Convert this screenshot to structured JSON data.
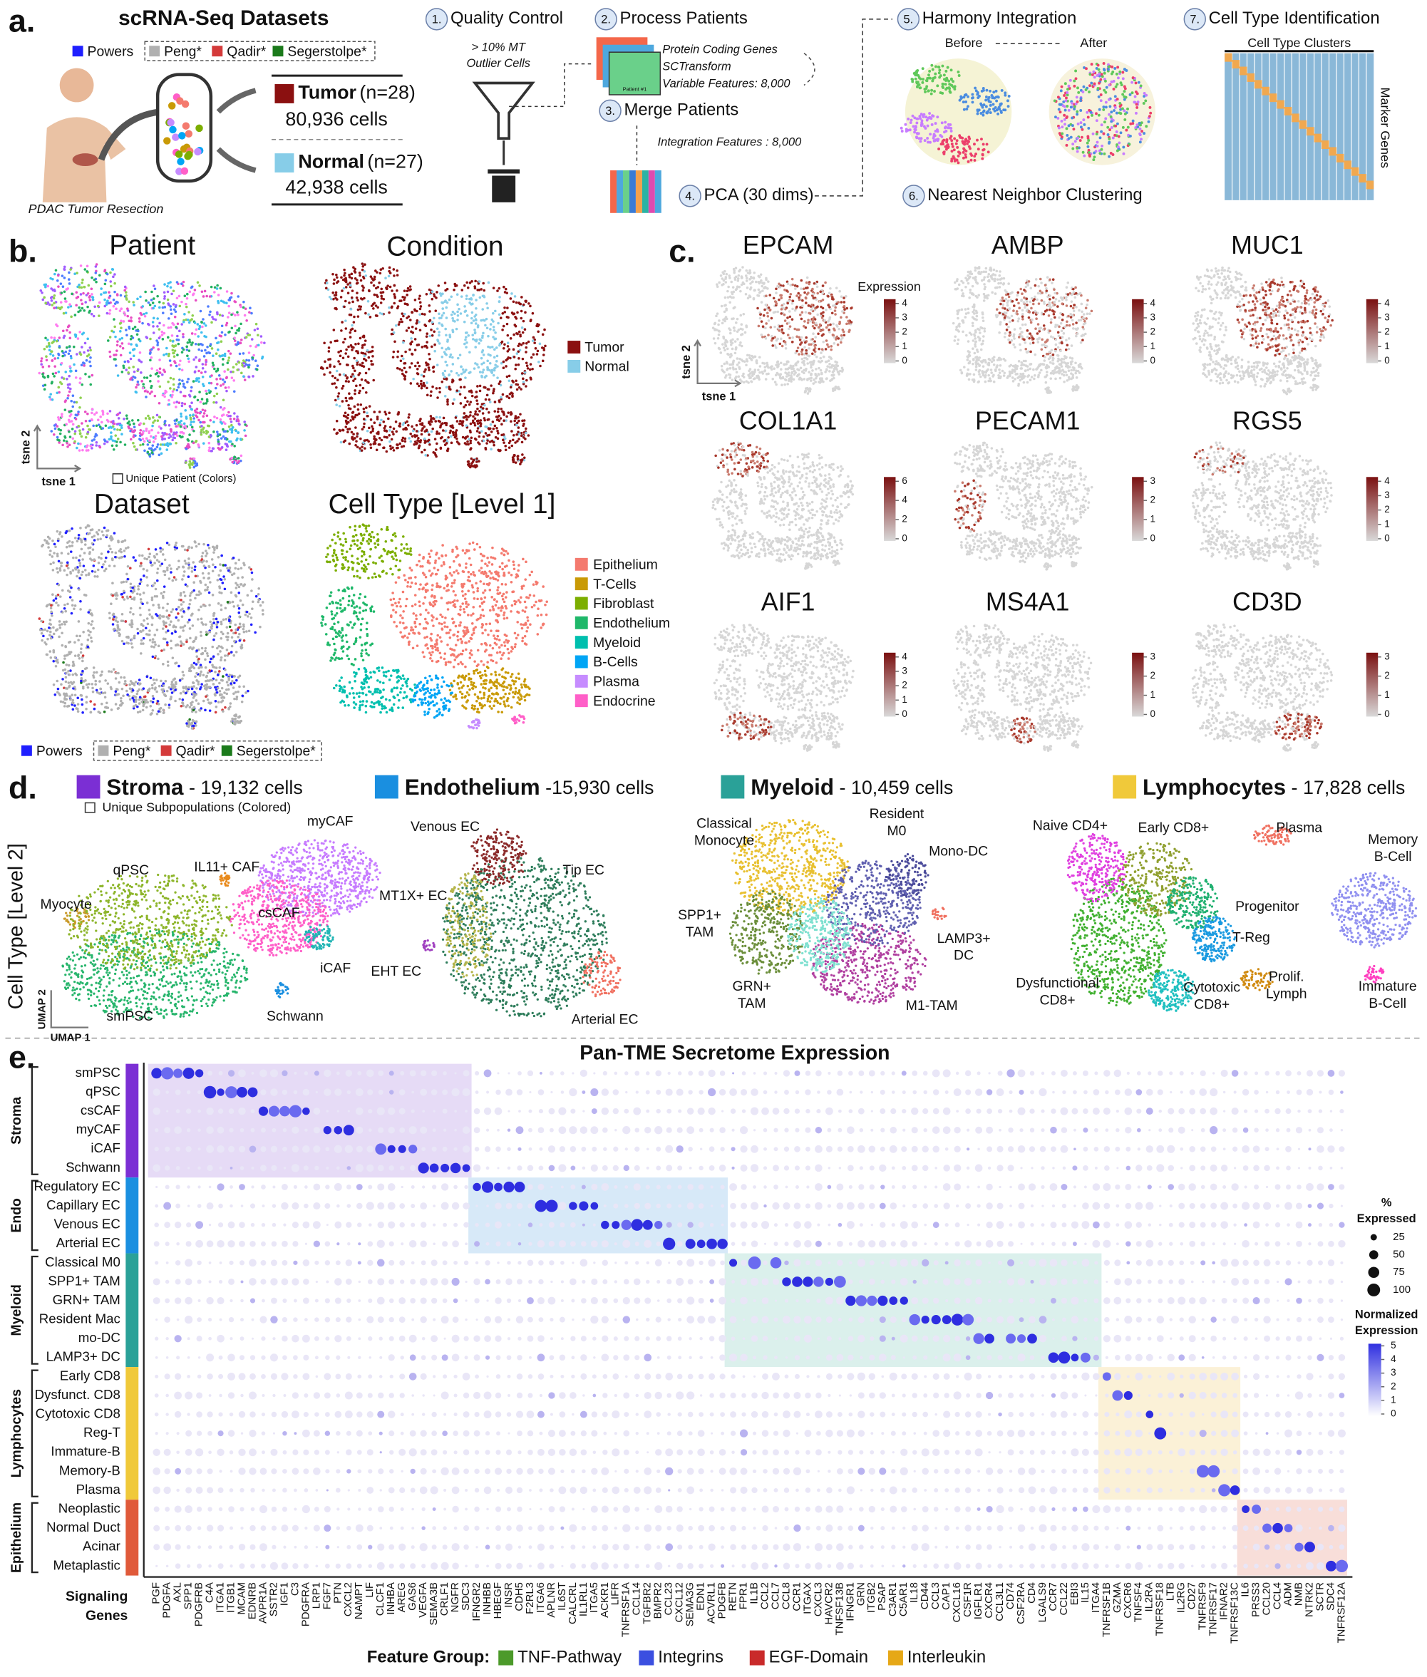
{
  "panel_a": {
    "label": "a.",
    "title": "scRNA-Seq Datasets",
    "datasets": [
      {
        "name": "Powers",
        "color": "#1f1fff"
      },
      {
        "name": "Peng*",
        "color": "#b0b0b0"
      },
      {
        "name": "Qadir*",
        "color": "#d43a3a"
      },
      {
        "name": "Segerstolpe*",
        "color": "#1b7a1b"
      }
    ],
    "resection": "PDAC  Tumor Resection",
    "tumor": {
      "name": "Tumor",
      "n": "(n=28)",
      "cells": "80,936 cells",
      "color": "#8b1010"
    },
    "normal": {
      "name": "Normal",
      "n": "(n=27)",
      "cells": "42,938 cells",
      "color": "#87cde8"
    },
    "steps": [
      {
        "num": "1.",
        "label": "Quality Control"
      },
      {
        "num": "2.",
        "label": "Process Patients"
      },
      {
        "num": "3.",
        "label": "Merge Patients"
      },
      {
        "num": "4.",
        "label": "PCA (30 dims)"
      },
      {
        "num": "5.",
        "label": "Harmony Integration"
      },
      {
        "num": "6.",
        "label": "Nearest Neighbor Clustering"
      },
      {
        "num": "7.",
        "label": "Cell Type Identification"
      }
    ],
    "qc_notes": [
      "> 10% MT",
      "Outlier Cells"
    ],
    "process_notes": [
      "Protein Coding Genes",
      "SCTransform",
      "Variable Features: 8,000"
    ],
    "patient_tag": "Patient #1",
    "merge_note": "Integration Features : 8,000",
    "harmony": [
      "Before",
      "After"
    ],
    "heatmap_top": "Cell Type Clusters",
    "heatmap_side": "Marker Genes"
  },
  "panel_b": {
    "label": "b.",
    "titles": [
      "Patient",
      "Condition",
      "Dataset",
      "Cell Type [Level 1]"
    ],
    "axis": [
      "tsne 2",
      "tsne 1"
    ],
    "patient_note": "Unique Patient (Colors)",
    "conditions": [
      {
        "name": "Tumor",
        "color": "#8b1010"
      },
      {
        "name": "Normal",
        "color": "#87cde8"
      }
    ],
    "cell_types": [
      {
        "name": "Epithelium",
        "color": "#f47a6e"
      },
      {
        "name": "T-Cells",
        "color": "#c99a06"
      },
      {
        "name": "Fibroblast",
        "color": "#7cae00"
      },
      {
        "name": "Endothelium",
        "color": "#1fb86a"
      },
      {
        "name": "Myeloid",
        "color": "#00bfae"
      },
      {
        "name": "B-Cells",
        "color": "#00a5f5"
      },
      {
        "name": "Plasma",
        "color": "#c68cff"
      },
      {
        "name": "Endocrine",
        "color": "#ff5fc8"
      }
    ],
    "datasets": [
      {
        "name": "Powers",
        "color": "#1f1fff"
      },
      {
        "name": "Peng*",
        "color": "#b0b0b0"
      },
      {
        "name": "Qadir*",
        "color": "#d43a3a"
      },
      {
        "name": "Segerstolpe*",
        "color": "#1b7a1b"
      }
    ]
  },
  "panel_c": {
    "label": "c.",
    "legend_title": "Expression",
    "axis": [
      "tsne 2",
      "tsne 1"
    ],
    "genes": [
      {
        "name": "EPCAM",
        "ticks": [
          0,
          1,
          2,
          3,
          4
        ]
      },
      {
        "name": "AMBP",
        "ticks": [
          0,
          1,
          2,
          3,
          4
        ]
      },
      {
        "name": "MUC1",
        "ticks": [
          0,
          1,
          2,
          3,
          4
        ]
      },
      {
        "name": "COL1A1",
        "ticks": [
          0,
          2,
          4,
          6
        ]
      },
      {
        "name": "PECAM1",
        "ticks": [
          0,
          1,
          2,
          3
        ]
      },
      {
        "name": "RGS5",
        "ticks": [
          0,
          1,
          2,
          3,
          4
        ]
      },
      {
        "name": "AIF1",
        "ticks": [
          0,
          1,
          2,
          3,
          4
        ]
      },
      {
        "name": "MS4A1",
        "ticks": [
          0,
          1,
          2,
          3
        ]
      },
      {
        "name": "CD3D",
        "ticks": [
          0,
          1,
          2,
          3
        ]
      }
    ]
  },
  "panel_d": {
    "label": "d.",
    "axis_title": "Cell Type [Level 2]",
    "note": "Unique Subpopulations (Colored)",
    "axis": [
      "UMAP 2",
      "UMAP 1"
    ],
    "groups": [
      {
        "name": "Stroma",
        "cells": "- 19,132 cells",
        "color": "#7b2fd4",
        "clusters": [
          [
            "Myocyte"
          ],
          [
            "smPSC"
          ],
          [
            "qPSC"
          ],
          [
            "myCAF"
          ],
          [
            "csCAF"
          ],
          [
            "iCAF"
          ],
          [
            "IL11+ CAF"
          ],
          [
            "Schwann"
          ]
        ]
      },
      {
        "name": "Endothelium",
        "cells": "-15,930 cells",
        "color": "#1a8fe0",
        "clusters": [
          [
            "Tip EC"
          ],
          [
            "Venous EC"
          ],
          [
            "MT1X+ EC"
          ],
          [
            "EHT EC"
          ],
          [
            "Arterial EC"
          ]
        ]
      },
      {
        "name": "Myeloid",
        "cells": "- 10,459 cells",
        "color": "#2aa198",
        "clusters": [
          [
            "Classical",
            "Monocyte"
          ],
          [
            "SPP1+",
            "TAM"
          ],
          [
            "M1-TAM"
          ],
          [
            "Resident",
            "M0"
          ],
          [
            "Mono-DC"
          ],
          [
            "GRN+",
            "TAM"
          ],
          [
            "LAMP3+",
            "DC"
          ]
        ]
      },
      {
        "name": "Lymphocytes",
        "cells": "- 17,828 cells",
        "color": "#f0c93a",
        "clusters": [
          [
            "Dysfunctional",
            "CD8+"
          ],
          [
            "Naive CD4+"
          ],
          [
            "Early CD8+"
          ],
          [
            "Progenitor"
          ],
          [
            "T-Reg"
          ],
          [
            "Cytotoxic",
            "CD8+"
          ],
          [
            "Prolif.",
            "Lymph"
          ],
          [
            "Plasma"
          ],
          [
            "Memory",
            "B-Cell"
          ],
          [
            "Immature",
            "B-Cell"
          ]
        ]
      }
    ]
  },
  "panel_e": {
    "label": "e.",
    "title": "Pan-TME Secretome Expression",
    "x_title": [
      "Signaling",
      "Genes"
    ],
    "row_groups": [
      {
        "name": "Stroma",
        "color": "#7b2fd4",
        "rows": [
          "smPSC",
          "qPSC",
          "csCAF",
          "myCAF",
          "iCAF",
          "Schwann"
        ]
      },
      {
        "name": "Endo",
        "color": "#1a8fe0",
        "rows": [
          "Regulatory EC",
          "Capillary EC",
          "Venous EC",
          "Arterial EC"
        ]
      },
      {
        "name": "Myeloid",
        "color": "#2aa198",
        "rows": [
          "Classical M0",
          "SPP1+ TAM",
          "GRN+ TAM",
          "Resident Mac",
          "mo-DC",
          "LAMP3+ DC"
        ]
      },
      {
        "name": "Lymphocytes",
        "color": "#f0c93a",
        "rows": [
          "Early CD8",
          "Dysfunct. CD8",
          "Cytotoxic CD8",
          "Reg-T",
          "Immature-B",
          "Memory-B",
          "Plasma"
        ]
      },
      {
        "name": "Epithelium",
        "color": "#e05a3a",
        "rows": [
          "Neoplastic",
          "Normal Duct",
          "Acinar",
          "Metaplastic"
        ]
      }
    ],
    "genes": [
      {
        "name": "PGF",
        "color": "#222"
      },
      {
        "name": "PDGFA",
        "color": "#222"
      },
      {
        "name": "AXL",
        "color": "#222"
      },
      {
        "name": "SPP1",
        "color": "#222"
      },
      {
        "name": "PDGFRB",
        "color": "#222"
      },
      {
        "name": "C4A",
        "color": "#222"
      },
      {
        "name": "ITGA1",
        "color": "#3b4fe0"
      },
      {
        "name": "ITGB1",
        "color": "#3b4fe0"
      },
      {
        "name": "MCAM",
        "color": "#222"
      },
      {
        "name": "EDNRB",
        "color": "#222"
      },
      {
        "name": "AVPR1A",
        "color": "#222"
      },
      {
        "name": "SSTR2",
        "color": "#222"
      },
      {
        "name": "IGF1",
        "color": "#222"
      },
      {
        "name": "C3",
        "color": "#222"
      },
      {
        "name": "PDGFRA",
        "color": "#222"
      },
      {
        "name": "LRP1",
        "color": "#c92a2a"
      },
      {
        "name": "FGF7",
        "color": "#222"
      },
      {
        "name": "PTN",
        "color": "#222"
      },
      {
        "name": "CXCL2",
        "color": "#222"
      },
      {
        "name": "NAMPT",
        "color": "#222"
      },
      {
        "name": "LIF",
        "color": "#222"
      },
      {
        "name": "CLCF1",
        "color": "#222"
      },
      {
        "name": "INHBA",
        "color": "#222"
      },
      {
        "name": "AREG",
        "color": "#c92a2a"
      },
      {
        "name": "GAS6",
        "color": "#c92a2a"
      },
      {
        "name": "VEGFA",
        "color": "#222"
      },
      {
        "name": "SEMA3B",
        "color": "#222"
      },
      {
        "name": "CRLF1",
        "color": "#222"
      },
      {
        "name": "NGFR",
        "color": "#4c9a2a"
      },
      {
        "name": "SDC3",
        "color": "#222"
      },
      {
        "name": "IFNGR2",
        "color": "#222"
      },
      {
        "name": "INHBB",
        "color": "#222"
      },
      {
        "name": "HBEGF",
        "color": "#c92a2a"
      },
      {
        "name": "INSR",
        "color": "#222"
      },
      {
        "name": "CDH5",
        "color": "#222"
      },
      {
        "name": "F2RL3",
        "color": "#222"
      },
      {
        "name": "ITGA6",
        "color": "#3b4fe0"
      },
      {
        "name": "APLNR",
        "color": "#222"
      },
      {
        "name": "IL6ST",
        "color": "#e6a817"
      },
      {
        "name": "CALCRL",
        "color": "#222"
      },
      {
        "name": "IL1RL1",
        "color": "#e6a817"
      },
      {
        "name": "ITGA5",
        "color": "#3b4fe0"
      },
      {
        "name": "ACKR1",
        "color": "#222"
      },
      {
        "name": "LIFR",
        "color": "#e6a817"
      },
      {
        "name": "TNFRSF1A",
        "color": "#4c9a2a"
      },
      {
        "name": "CCL14",
        "color": "#222"
      },
      {
        "name": "TGFBR2",
        "color": "#222"
      },
      {
        "name": "BMPR2",
        "color": "#222"
      },
      {
        "name": "CCL23",
        "color": "#222"
      },
      {
        "name": "CXCL12",
        "color": "#222"
      },
      {
        "name": "SEMA3G",
        "color": "#222"
      },
      {
        "name": "EDN1",
        "color": "#222"
      },
      {
        "name": "ACVRL1",
        "color": "#222"
      },
      {
        "name": "PDGFB",
        "color": "#222"
      },
      {
        "name": "RETN",
        "color": "#222"
      },
      {
        "name": "FPR1",
        "color": "#222"
      },
      {
        "name": "IL1B",
        "color": "#e6a817"
      },
      {
        "name": "CCL2",
        "color": "#222"
      },
      {
        "name": "CCL7",
        "color": "#222"
      },
      {
        "name": "CCL8",
        "color": "#222"
      },
      {
        "name": "CCR1",
        "color": "#222"
      },
      {
        "name": "ITGAX",
        "color": "#3b4fe0"
      },
      {
        "name": "CXCL3",
        "color": "#222"
      },
      {
        "name": "HAVCR2",
        "color": "#222"
      },
      {
        "name": "TNFSF13B",
        "color": "#4c9a2a"
      },
      {
        "name": "IFNGR1",
        "color": "#222"
      },
      {
        "name": "GRN",
        "color": "#222"
      },
      {
        "name": "ITGB2",
        "color": "#3b4fe0"
      },
      {
        "name": "PSAP",
        "color": "#222"
      },
      {
        "name": "C3AR1",
        "color": "#222"
      },
      {
        "name": "C5AR1",
        "color": "#222"
      },
      {
        "name": "IL18",
        "color": "#e6a817"
      },
      {
        "name": "CD44",
        "color": "#222"
      },
      {
        "name": "CCL3",
        "color": "#222"
      },
      {
        "name": "CAP1",
        "color": "#222"
      },
      {
        "name": "CXCL16",
        "color": "#222"
      },
      {
        "name": "CSF1R",
        "color": "#222"
      },
      {
        "name": "IGFLR1",
        "color": "#222"
      },
      {
        "name": "CXCR4",
        "color": "#222"
      },
      {
        "name": "CCL3L1",
        "color": "#222"
      },
      {
        "name": "CD74",
        "color": "#222"
      },
      {
        "name": "CSF2RA",
        "color": "#222"
      },
      {
        "name": "CD4",
        "color": "#222"
      },
      {
        "name": "LGALS9",
        "color": "#222"
      },
      {
        "name": "CCR7",
        "color": "#222"
      },
      {
        "name": "CCL22",
        "color": "#222"
      },
      {
        "name": "EBI3",
        "color": "#222"
      },
      {
        "name": "IL15",
        "color": "#e6a817"
      },
      {
        "name": "ITGA4",
        "color": "#3b4fe0"
      },
      {
        "name": "TNFRSF1B",
        "color": "#4c9a2a"
      },
      {
        "name": "GZMA",
        "color": "#222"
      },
      {
        "name": "CXCR6",
        "color": "#222"
      },
      {
        "name": "TNFSF4",
        "color": "#4c9a2a"
      },
      {
        "name": "IL2RA",
        "color": "#e6a817"
      },
      {
        "name": "TNFRSF18",
        "color": "#4c9a2a"
      },
      {
        "name": "LTB",
        "color": "#222"
      },
      {
        "name": "IL2RG",
        "color": "#e6a817"
      },
      {
        "name": "CD27",
        "color": "#222"
      },
      {
        "name": "TNFRSF9",
        "color": "#4c9a2a"
      },
      {
        "name": "TNFRSF17",
        "color": "#4c9a2a"
      },
      {
        "name": "IFNAR2",
        "color": "#222"
      },
      {
        "name": "TNFRSF13C",
        "color": "#4c9a2a"
      },
      {
        "name": "IL6",
        "color": "#e6a817"
      },
      {
        "name": "PRSS3",
        "color": "#222"
      },
      {
        "name": "CCL20",
        "color": "#222"
      },
      {
        "name": "CCL4",
        "color": "#222"
      },
      {
        "name": "ADM",
        "color": "#222"
      },
      {
        "name": "NMB",
        "color": "#222"
      },
      {
        "name": "NTRK2",
        "color": "#222"
      },
      {
        "name": "SCTR",
        "color": "#222"
      },
      {
        "name": "SDC4",
        "color": "#222"
      },
      {
        "name": "TNFRSF12A",
        "color": "#4c9a2a"
      }
    ],
    "size_legend": {
      "title": [
        "%",
        "Expressed"
      ],
      "values": [
        25,
        50,
        75,
        100
      ]
    },
    "color_legend": {
      "title": [
        "Normalized",
        "Expression"
      ],
      "ticks": [
        5,
        4,
        3,
        2,
        1,
        0
      ]
    },
    "feature_groups": {
      "title": "Feature Group:",
      "items": [
        {
          "name": "TNF-Pathway",
          "color": "#4c9a2a"
        },
        {
          "name": "Integrins",
          "color": "#3b4fe0"
        },
        {
          "name": "EGF-Domain",
          "color": "#c92a2a"
        },
        {
          "name": "Interleukin",
          "color": "#e6a817"
        }
      ]
    }
  }
}
